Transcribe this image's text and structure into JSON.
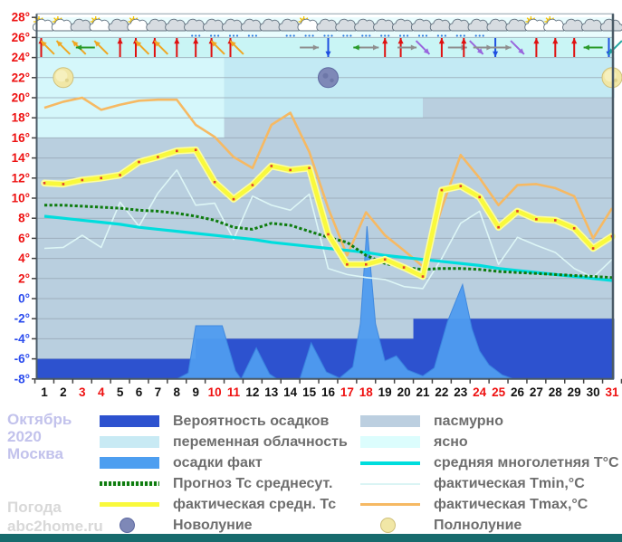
{
  "header": {
    "month": "Октябрь",
    "year": "2020",
    "city": "Москва"
  },
  "footer": {
    "line1": "Погода",
    "line2": "abc2home.ru"
  },
  "colors": {
    "plot_overcast": "#b9cfdf",
    "icon_band": "#e9fcfd",
    "arrow_band": "#c9f5f5",
    "grid": "#95a5b2",
    "axis_frame": "#4a5a66",
    "tick_label_positive": "#ee1111",
    "tick_label_zero_negative": "#2a4bee",
    "day_label": "#111111",
    "day_label_weekend": "#ee1111",
    "bottom_bar": "#176b6d",
    "title_text": "#c2c2ec",
    "footer_text": "#d8d8d8",
    "legend_text": "#6e6e6e"
  },
  "chart_data": {
    "type": "line",
    "title": "Октябрь 2020 Москва",
    "x_days": [
      1,
      2,
      3,
      4,
      5,
      6,
      7,
      8,
      9,
      10,
      11,
      12,
      13,
      14,
      15,
      16,
      17,
      18,
      19,
      20,
      21,
      22,
      23,
      24,
      25,
      26,
      27,
      28,
      29,
      30,
      31
    ],
    "ylim": [
      -8,
      28
    ],
    "ytick_step": 2,
    "weekend_days": [
      3,
      4,
      10,
      11,
      17,
      18,
      24,
      25,
      31
    ],
    "series": [
      {
        "name": "фактическая Tmax,°С",
        "color": "#f6b963",
        "width": 2.6,
        "values": [
          19,
          19.6,
          20,
          18.8,
          19.3,
          19.7,
          19.8,
          19.8,
          17.3,
          16.1,
          14.1,
          13,
          17.3,
          18.5,
          14.6,
          9,
          4.3,
          8.6,
          6.3,
          4.8,
          3.2,
          9,
          14.3,
          12,
          9.3,
          11.3,
          11.4,
          11,
          10.2,
          6,
          9
        ]
      },
      {
        "name": "фактическая Tmin,°С",
        "color": "#ddf6f6",
        "width": 1.6,
        "values": [
          5,
          5.1,
          6.3,
          5.1,
          9.6,
          7.2,
          10.5,
          12.8,
          9.3,
          9.5,
          5.9,
          10.2,
          9.3,
          8.8,
          10.4,
          3,
          2.4,
          2.1,
          1.9,
          1.2,
          1,
          4,
          7.5,
          8.7,
          3.4,
          6.1,
          5.3,
          4.6,
          3,
          2.1,
          3.9
        ]
      },
      {
        "name": "средняя многолетняя Т°С",
        "color": "#00dddd",
        "width": 3.2,
        "values": [
          8.2,
          8,
          7.8,
          7.6,
          7.4,
          7.1,
          6.9,
          6.7,
          6.5,
          6.3,
          6.1,
          5.9,
          5.6,
          5.4,
          5.2,
          5,
          4.8,
          4.6,
          4.3,
          4.1,
          3.9,
          3.7,
          3.5,
          3.3,
          3,
          2.8,
          2.6,
          2.4,
          2.2,
          2,
          1.8
        ]
      },
      {
        "name": "Прогноз Тс среднесут.",
        "color": "#0e7c0e",
        "width": 3,
        "dash": "3.2 2.4",
        "values": [
          9.3,
          9.3,
          9.2,
          9.1,
          9,
          8.8,
          8.7,
          8.5,
          8.2,
          7.8,
          7.1,
          6.9,
          7.5,
          7.3,
          6.7,
          6.1,
          5.6,
          4.3,
          3.5,
          3.1,
          2.9,
          3,
          3,
          2.9,
          2.7,
          2.6,
          2.5,
          2.4,
          2.3,
          2.2,
          2.1
        ]
      },
      {
        "name": "фактическая средн. Тс",
        "color": "#f9f93c",
        "halo": "#fdfda0",
        "width": 4.6,
        "marker_color": "#e23e2e",
        "values": [
          11.5,
          11.4,
          11.8,
          12,
          12.3,
          13.6,
          14.1,
          14.7,
          14.8,
          11.6,
          9.9,
          11.3,
          13.2,
          12.8,
          13,
          6.4,
          3.4,
          3.4,
          3.9,
          3.1,
          2.2,
          10.8,
          11.2,
          10.1,
          7.1,
          8.7,
          7.9,
          7.8,
          7,
          5,
          6.2
        ]
      }
    ],
    "precip_probability_band": {
      "color": "#2d52cf",
      "bottom": -8,
      "steps": [
        {
          "from_day": 0.57,
          "to_day": 9,
          "top": -6
        },
        {
          "from_day": 9,
          "to_day": 20.5,
          "top": -4
        },
        {
          "from_day": 20.5,
          "to_day": 31.12,
          "top": -2
        }
      ]
    },
    "precip_fact_area": {
      "color": "#4f9cf0",
      "edge": "#3a86e0",
      "points": [
        [
          0.57,
          -8
        ],
        [
          8,
          -8
        ],
        [
          8.6,
          -7.4
        ],
        [
          9,
          -2.7
        ],
        [
          10.4,
          -2.7
        ],
        [
          11.1,
          -7.2
        ],
        [
          11.4,
          -8
        ],
        [
          12.2,
          -4.9
        ],
        [
          12.9,
          -7.5
        ],
        [
          13.3,
          -8
        ],
        [
          14.5,
          -8
        ],
        [
          15.1,
          -4.4
        ],
        [
          15.9,
          -7.3
        ],
        [
          16.6,
          -7.9
        ],
        [
          17.3,
          -6.8
        ],
        [
          17.7,
          -2.5
        ],
        [
          18.05,
          7.2
        ],
        [
          18.5,
          -2.5
        ],
        [
          19,
          -6.2
        ],
        [
          19.6,
          -5.7
        ],
        [
          20.2,
          -7.1
        ],
        [
          21,
          -7.7
        ],
        [
          21.6,
          -6.9
        ],
        [
          22.3,
          -2.3
        ],
        [
          23.1,
          1.4
        ],
        [
          23.6,
          -3
        ],
        [
          24,
          -5.2
        ],
        [
          24.5,
          -6.6
        ],
        [
          25.2,
          -7.6
        ],
        [
          25.8,
          -8
        ],
        [
          31.12,
          -8
        ]
      ]
    },
    "cloud_zones": [
      {
        "from_day": 0.57,
        "to_day": 10.5,
        "top_temp": 24,
        "bottom_temp": 16,
        "color": "#d5f7fb"
      },
      {
        "from_day": 10.5,
        "to_day": 21,
        "top_temp": 24,
        "bottom_temp": 18,
        "color": "#c3eaf4"
      },
      {
        "from_day": 21,
        "to_day": 31.12,
        "top_temp": 24,
        "bottom_temp": 20,
        "color": "#c3eaf4"
      }
    ],
    "weather_icons": [
      "sun-cloud",
      "sun-cloud",
      "cloud",
      "sun-cloud",
      "cloud",
      "sun-cloud",
      "cloud",
      "cloud",
      "cloud-rain",
      "cloud-rain",
      "cloud-rain",
      "cloud-rain",
      "cloud",
      "cloud-rain",
      "sun-cloud-rain",
      "cloud-rain",
      "cloud-rain",
      "cloud-rain",
      "cloud-rain",
      "cloud-rain",
      "cloud-rain",
      "cloud-rain",
      "cloud-rain",
      "cloud-rain",
      "cloud",
      "cloud",
      "sun-cloud",
      "sun-cloud",
      "cloud",
      "cloud",
      "cloud"
    ],
    "wind_arrows": [
      [
        "up:red",
        "upleft:orange"
      ],
      [
        "upleft:orange"
      ],
      [
        "upleft:orange",
        "left:green"
      ],
      [
        "upleft:orange"
      ],
      [
        "up:red"
      ],
      [
        "up:red",
        "upleft:orange"
      ],
      [
        "up:red",
        "upleft:orange"
      ],
      [
        "up:red"
      ],
      [
        "up:red"
      ],
      [
        "up:red",
        "upleft:orange"
      ],
      [
        "up:red",
        "upleft:orange"
      ],
      [],
      [],
      [],
      [
        "right:gray"
      ],
      [
        "down:blue"
      ],
      [],
      [
        "left:green",
        "right:gray"
      ],
      [
        "up:red"
      ],
      [
        "up:red",
        "right:gray"
      ],
      [
        "downright:purple"
      ],
      [
        "up:red"
      ],
      [
        "right:gray",
        "up:red"
      ],
      [
        "downright:purple",
        "right:gray"
      ],
      [
        "down:blue",
        "right:gray"
      ],
      [
        "downright:purple"
      ],
      [
        "up:red"
      ],
      [
        "up:red"
      ],
      [
        "up:red"
      ],
      [
        "left:green"
      ],
      [
        "down:blue",
        "downleft:teal"
      ]
    ],
    "arrow_colors": {
      "red": "#e01010",
      "orange": "#f0a622",
      "green": "#2a9a2a",
      "gray": "#8f8f8f",
      "blue": "#1f4fe0",
      "purple": "#9966dd",
      "teal": "#22a6a0"
    },
    "moons": [
      {
        "day": 2,
        "phase": "full",
        "label": "Полнолуние"
      },
      {
        "day": 16,
        "phase": "new",
        "label": "Новолуние"
      },
      {
        "day": 31,
        "phase": "full",
        "label": "Полнолуние"
      }
    ]
  },
  "legend": {
    "columns": [
      {
        "items": [
          {
            "swatch": "rect",
            "color": "#2d52cf",
            "label": "Вероятность осадков"
          },
          {
            "swatch": "rect",
            "color": "#c8eaf4",
            "label": "переменная облачность"
          },
          {
            "swatch": "rect",
            "color": "#4d9ef0",
            "label": "осадки факт"
          },
          {
            "swatch": "dots",
            "color": "#0e7c0e",
            "label": "Прогноз Тс среднесут."
          },
          {
            "swatch": "line",
            "color": "#f9f93c",
            "height": 5,
            "label": "фактическая средн. Тс"
          },
          {
            "swatch": "moon_new",
            "color": "#7e88b7",
            "border": "#5d68a0",
            "label": "Новолуние"
          }
        ]
      },
      {
        "items": [
          {
            "swatch": "rect",
            "color": "#bccfe0",
            "label": "пасмурно"
          },
          {
            "swatch": "rect",
            "color": "#dcfdfd",
            "label": "ясно"
          },
          {
            "swatch": "line",
            "color": "#00dddd",
            "height": 4,
            "label": "средняя многолетняя Т°С"
          },
          {
            "swatch": "line",
            "color": "#daf4f4",
            "height": 2,
            "label": "фактическая Tmin,°С"
          },
          {
            "swatch": "line",
            "color": "#f6b963",
            "height": 3,
            "label": "фактическая Tmax,°С"
          },
          {
            "swatch": "moon_full",
            "color": "#f1e7a6",
            "border": "#cfc07a",
            "label": "Полнолуние"
          }
        ]
      }
    ]
  }
}
